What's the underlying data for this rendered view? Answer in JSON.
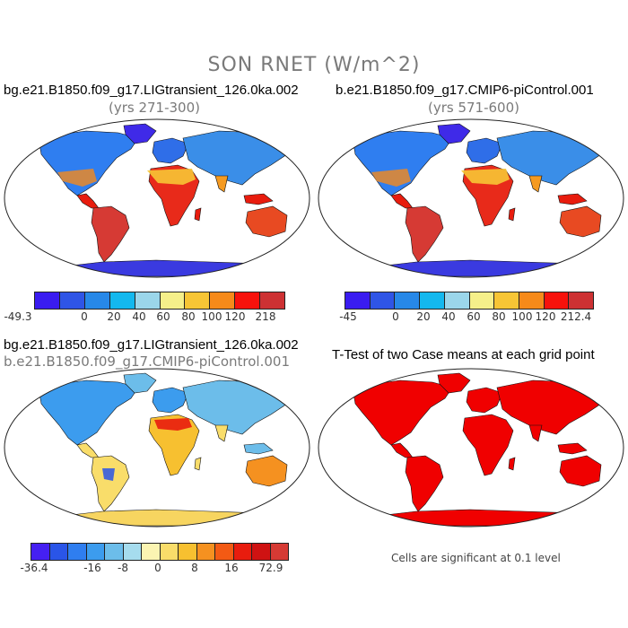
{
  "title": "SON RNET (W/m^2)",
  "panels": [
    {
      "case_name": "bg.e21.B1850.f09_g17.LIGtransient_126.0ka.002",
      "years": "(yrs 271-300)",
      "colorbar": {
        "colors": [
          "#3a1cf0",
          "#2f55e6",
          "#2788e8",
          "#14b8ee",
          "#9bd6ea",
          "#f5ef8a",
          "#f7c535",
          "#f68a1a",
          "#f7120c",
          "#cd3133"
        ],
        "labels": [
          "-49.3",
          "0",
          "20",
          "40",
          "60",
          "80",
          "100",
          "120",
          "218"
        ]
      }
    },
    {
      "case_name": "b.e21.B1850.f09_g17.CMIP6-piControl.001",
      "years": "(yrs 571-600)",
      "colorbar": {
        "colors": [
          "#3a1cf0",
          "#2f55e6",
          "#2788e8",
          "#14b8ee",
          "#9bd6ea",
          "#f5ef8a",
          "#f7c535",
          "#f68a1a",
          "#f7120c",
          "#cd3133"
        ],
        "labels": [
          "-45",
          "0",
          "20",
          "40",
          "60",
          "80",
          "100",
          "120",
          "212.4"
        ]
      }
    },
    {
      "case_name": "bg.e21.B1850.f09_g17.LIGtransient_126.0ka.002",
      "case_name_2": "b.e21.B1850.f09_g17.CMIP6-piControl.001",
      "colorbar": {
        "colors": [
          "#4520f2",
          "#2a55e8",
          "#2f7ef0",
          "#3c9cee",
          "#6cbdea",
          "#a6dcee",
          "#fbf4b2",
          "#f9dd6a",
          "#f7c030",
          "#f59120",
          "#f35a14",
          "#e81c0e",
          "#cf1212",
          "#d63a34"
        ],
        "labels": [
          "-36.4",
          "-16",
          "-8",
          "0",
          "8",
          "16",
          "72.9"
        ]
      }
    },
    {
      "title": "T-Test of two Case means at each grid point",
      "note": "Cells are significant at 0.1 level"
    }
  ]
}
